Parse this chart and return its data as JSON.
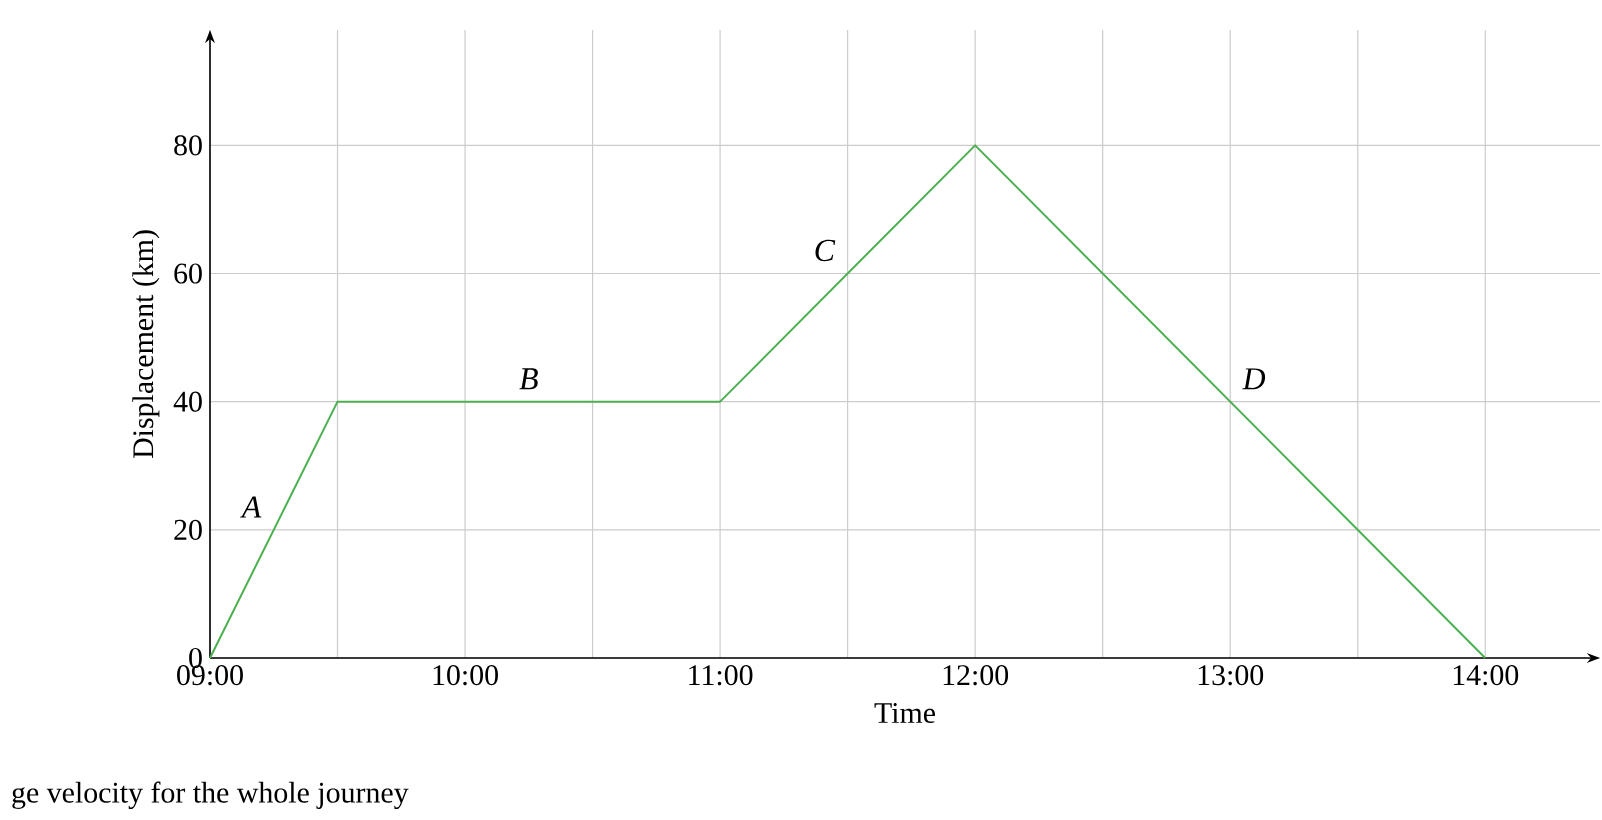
{
  "chart_data": {
    "type": "line",
    "xlabel": "Time",
    "ylabel": "Displacement (km)",
    "x": [
      9,
      9.5,
      11,
      12,
      14
    ],
    "series": [
      {
        "color": "#4caf50",
        "values": [
          0,
          40,
          40,
          80,
          0
        ]
      }
    ],
    "xlim": [
      9,
      14.45
    ],
    "ylim": [
      0,
      98
    ],
    "xticks": [
      {
        "value": 9,
        "label": "09:00"
      },
      {
        "value": 9.5,
        "label": null
      },
      {
        "value": 10,
        "label": "10:00"
      },
      {
        "value": 10.5,
        "label": null
      },
      {
        "value": 11,
        "label": "11:00"
      },
      {
        "value": 11.5,
        "label": null
      },
      {
        "value": 12,
        "label": "12:00"
      },
      {
        "value": 12.5,
        "label": null
      },
      {
        "value": 13,
        "label": "13:00"
      },
      {
        "value": 13.5,
        "label": null
      },
      {
        "value": 14,
        "label": "14:00"
      }
    ],
    "yticks": [
      0,
      20,
      40,
      60,
      80
    ],
    "grid": true,
    "marker": "none",
    "line_style": "solid",
    "annotations": [
      "*A*",
      "*B*",
      "*C*",
      "*D*",
      "ge velocity for the whole journey"
    ]
  }
}
